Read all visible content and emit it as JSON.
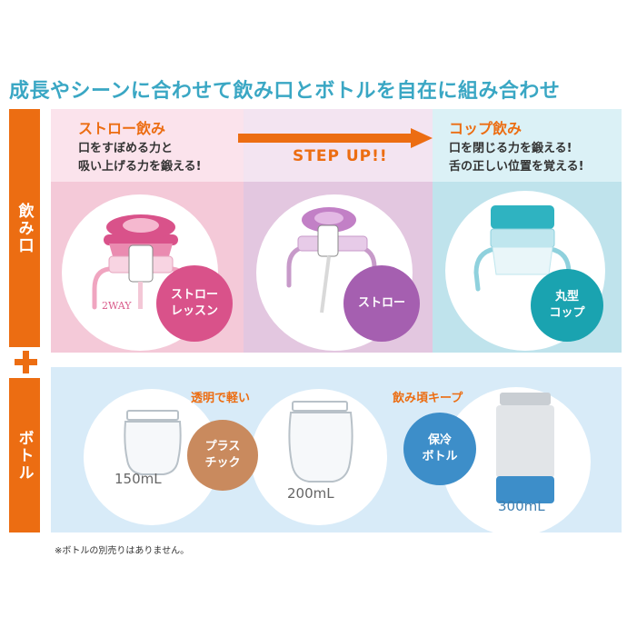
{
  "headline": "成長やシーンに合わせて飲み口とボトルを自在に組み合わせ",
  "side_labels": {
    "spout": "飲み口",
    "bottle": "ボトル"
  },
  "straw_panel": {
    "title": "ストロー飲み",
    "lines": [
      "口をすぼめる力と",
      "吸い上げる力を鍛える!"
    ],
    "badge_lines": [
      "ストロー",
      "レッスン"
    ],
    "sub_label": "2WAY"
  },
  "step_panel": {
    "step_label": "STEP UP!!",
    "badge_label": "ストロー"
  },
  "cup_panel": {
    "title": "コップ飲み",
    "lines": [
      "口を閉じる力を鍛える!",
      "舌の正しい位置を覚える!"
    ],
    "badge_lines": [
      "丸型",
      "コップ"
    ]
  },
  "bottles": {
    "tag_clear": "透明で軽い",
    "tag_keep": "飲み頃キープ",
    "plastic_badge": [
      "プラス",
      "チック"
    ],
    "insulated_badge": [
      "保冷",
      "ボトル"
    ],
    "vol_150": "150mL",
    "vol_200": "200mL",
    "vol_300": "300mL"
  },
  "note": "※ボトルの別売りはありません。",
  "colors": {
    "orange": "#ec6d12",
    "pink": "#d9528a",
    "purple": "#a55fb0",
    "teal": "#1aa3b0",
    "bottle_blue": "#3d8ec9",
    "plastic_brown": "#c98a5e"
  }
}
